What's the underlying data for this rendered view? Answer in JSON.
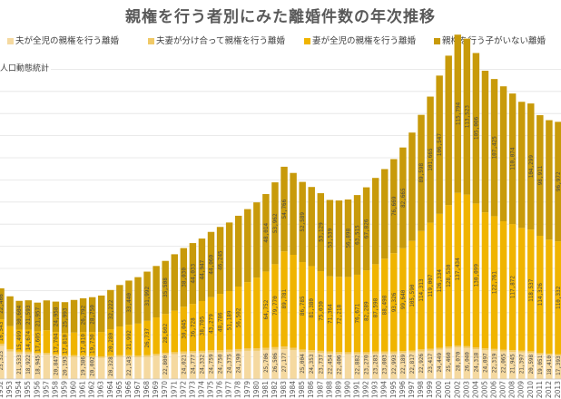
{
  "chart_data": {
    "type": "bar",
    "stacked": true,
    "title": "親権を行う者別にみた離婚件数の年次推移",
    "note": "人口動態統計",
    "legend_position": "top",
    "grid": true,
    "ylim": [
      0,
      300000
    ],
    "categories": [
      "1952",
      "1953",
      "1954",
      "1955",
      "1956",
      "1957",
      "1958",
      "1959",
      "1960",
      "1961",
      "1962",
      "1963",
      "1964",
      "1965",
      "1966",
      "1967",
      "1968",
      "1969",
      "1970",
      "1971",
      "1972",
      "1973",
      "1974",
      "1975",
      "1976",
      "1977",
      "1978",
      "1979",
      "1980",
      "1981",
      "1982",
      "1983",
      "1984",
      "1985",
      "1986",
      "1987",
      "1988",
      "1989",
      "1990",
      "1991",
      "1992",
      "1993",
      "1994",
      "1995",
      "1996",
      "1997",
      "1998",
      "1999",
      "2000",
      "2001",
      "2002",
      "2003",
      "2004",
      "2005",
      "2006",
      "2007",
      "2008",
      "2009",
      "2010",
      "2011",
      "2012",
      "2013"
    ],
    "series": [
      {
        "name": "夫が全児の親権を行う離婚",
        "color": "#f5d9a0",
        "values": [
          30000,
          25000,
          23000,
          23000,
          22000,
          22000,
          21000,
          20000,
          20000,
          20000,
          19500,
          19000,
          19500,
          20000,
          20000,
          19500,
          20000,
          21000,
          22000,
          22500,
          23000,
          23500,
          23500,
          24000,
          24000,
          24500,
          25000,
          25500,
          25500,
          26000,
          26500,
          27000,
          26000,
          24500,
          24000,
          23500,
          23000,
          22500,
          22500,
          22500,
          22500,
          23000,
          23000,
          23000,
          23500,
          24000,
          25000,
          25500,
          26500,
          27500,
          28500,
          28000,
          27000,
          26000,
          25500,
          25000,
          24500,
          24000,
          23500,
          22000,
          21500,
          21000
        ]
      },
      {
        "name": "夫妻が分け合って親権を行う離婚",
        "color": "#f0c966",
        "values": [
          2000,
          1800,
          1700,
          1700,
          1600,
          1600,
          1500,
          1500,
          1500,
          1500,
          1500,
          1500,
          1500,
          1500,
          1500,
          1600,
          1600,
          1700,
          1800,
          1800,
          1900,
          1900,
          2000,
          2000,
          2000,
          2000,
          2100,
          2100,
          2200,
          2200,
          2300,
          2400,
          2300,
          2200,
          2100,
          2000,
          1900,
          1900,
          1800,
          1800,
          1800,
          1800,
          1800,
          1800,
          1800,
          1800,
          1800,
          1800,
          1800,
          1800,
          1800,
          1700,
          1700,
          1700,
          1700,
          1600,
          1600,
          1600,
          1600,
          1500,
          1500,
          1500
        ]
      },
      {
        "name": "妻が全児の親権を行う離婚",
        "color": "#f0b400",
        "values": [
          22000,
          21000,
          20000,
          20000,
          19500,
          20500,
          20000,
          20000,
          20500,
          21000,
          21500,
          22000,
          24000,
          26000,
          27500,
          29000,
          31000,
          33000,
          35000,
          37500,
          40500,
          42500,
          45000,
          48000,
          51000,
          53000,
          56500,
          60000,
          64000,
          69000,
          75000,
          86000,
          84000,
          79000,
          76000,
          72000,
          68000,
          68000,
          68000,
          70000,
          74000,
          79000,
          84000,
          89000,
          93000,
          99000,
          107000,
          114000,
          121000,
          128000,
          138000,
          137000,
          130000,
          123000,
          120000,
          116000,
          114000,
          111000,
          110000,
          106000,
          103000,
          102000
        ]
      },
      {
        "name": "親権を行う子がいない離婚",
        "color": "#c89a0a",
        "values": [
          28000,
          27000,
          26000,
          26500,
          26000,
          27000,
          27500,
          28000,
          29500,
          30500,
          31500,
          33000,
          35500,
          37500,
          40000,
          42000,
          44500,
          46500,
          48000,
          51000,
          53000,
          55000,
          56500,
          59000,
          60500,
          62000,
          64000,
          66000,
          68000,
          70000,
          74000,
          76500,
          74000,
          72500,
          71500,
          70500,
          69000,
          69000,
          70000,
          72000,
          75000,
          78000,
          81000,
          85000,
          91000,
          98000,
          105000,
          114000,
          125000,
          135000,
          143000,
          141000,
          136000,
          128000,
          124000,
          122000,
          118000,
          114000,
          114000,
          109000,
          108000,
          108000
        ]
      }
    ],
    "data_labels": [
      [
        "22,466",
        "16,543",
        "23,323",
        "25,000"
      ],
      [
        "",
        "",
        "",
        ""
      ],
      [
        "30,604",
        "15,499",
        "21,533",
        ""
      ],
      [
        "21,593",
        "14,674",
        "18,922",
        ""
      ],
      [
        "21,957",
        "17,605",
        "18,945",
        ""
      ],
      [
        "",
        "",
        "",
        ""
      ],
      [
        "24,958",
        "17,704",
        "20,847",
        ""
      ],
      [
        "25,993",
        "17,810",
        "20,193",
        ""
      ],
      [
        "",
        "",
        "",
        ""
      ],
      [
        "26,792",
        "17,810",
        "19,386",
        ""
      ],
      [
        "28,750",
        "19,730",
        "20,002",
        ""
      ],
      [
        "",
        "",
        "",
        ""
      ],
      [
        "32,222",
        "20,280",
        "20,328",
        ""
      ],
      [
        "",
        "",
        "",
        ""
      ],
      [
        "33,440",
        "21,992",
        "22,143",
        ""
      ],
      [
        "",
        "",
        "",
        ""
      ],
      [
        "31,992",
        "26,737",
        "",
        ""
      ],
      [
        "",
        "",
        "",
        ""
      ],
      [
        "35,508",
        "28,602",
        "22,800",
        ""
      ],
      [
        "",
        "",
        "",
        ""
      ],
      [
        "38,030",
        "30,045",
        "24,021",
        ""
      ],
      [
        "44,033",
        "36,728",
        "24,777",
        ""
      ],
      [
        "44,947",
        "38,705",
        "24,332",
        ""
      ],
      [
        "44,060",
        "43,279",
        "24,759",
        ""
      ],
      [
        "46,245",
        "48,786",
        "24,750",
        ""
      ],
      [
        "",
        "51,189",
        "24,375",
        ""
      ],
      [
        "",
        "56,502",
        "24,190",
        ""
      ],
      [
        "",
        "",
        "",
        ""
      ],
      [
        "",
        "",
        "",
        ""
      ],
      [
        "48,014",
        "64,752",
        "25,706",
        ""
      ],
      [
        "53,962",
        "79,770",
        "26,506",
        ""
      ],
      [
        "54,766",
        "89,781",
        "27,177",
        ""
      ],
      [
        "",
        "",
        "",
        ""
      ],
      [
        "52,589",
        "86,785",
        "25,004",
        ""
      ],
      [
        "",
        "81,380",
        "24,353",
        ""
      ],
      [
        "53,129",
        "75,030",
        "23,737",
        ""
      ],
      [
        "53,539",
        "71,364",
        "22,454",
        ""
      ],
      [
        "",
        "72,218",
        "22,406",
        ""
      ],
      [
        "56,898",
        "",
        "",
        ""
      ],
      [
        "63,515",
        "76,671",
        "22,882",
        ""
      ],
      [
        "67,826",
        "82,289",
        "23,270",
        ""
      ],
      [
        "",
        "87,598",
        "23,283",
        ""
      ],
      [
        "",
        "88,498",
        "23,003",
        ""
      ],
      [
        "76,669",
        "93,326",
        "22,993",
        ""
      ],
      [
        "82,665",
        "99,640",
        "22,189",
        ""
      ],
      [
        "",
        "105,590",
        "22,817",
        ""
      ],
      [
        "89,598",
        "114,313",
        "22,926",
        ""
      ],
      [
        "101,665",
        "119,007",
        "23,417",
        ""
      ],
      [
        "106,547",
        "126,334",
        "24,449",
        ""
      ],
      [
        "",
        "128,530",
        "25,460",
        ""
      ],
      [
        "115,794",
        "137,434",
        "28,070",
        ""
      ],
      [
        "113,523",
        "",
        "26,040",
        ""
      ],
      [
        "105,006",
        "130,099",
        "24,318",
        ""
      ],
      [
        "",
        "",
        "24,097",
        ""
      ],
      [
        "107,425",
        "122,761",
        "22,319",
        ""
      ],
      [
        "",
        "",
        "22,065",
        ""
      ],
      [
        "110,074",
        "117,872",
        "21,945",
        ""
      ],
      [
        "",
        "",
        "21,397",
        ""
      ],
      [
        "104,299",
        "118,537",
        "20,598",
        ""
      ],
      [
        "98,911",
        "114,326",
        "19,051",
        ""
      ],
      [
        "",
        "",
        "18,410",
        ""
      ],
      [
        "96,972",
        "110,332",
        "17,393",
        ""
      ]
    ]
  }
}
